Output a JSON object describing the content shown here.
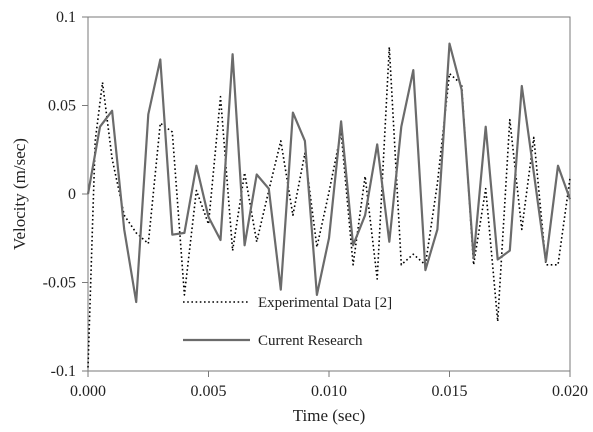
{
  "chart_data": {
    "type": "line",
    "xlabel": "Time (sec)",
    "ylabel": "Velocity (m/sec)",
    "xlim": [
      0,
      0.02
    ],
    "ylim": [
      -0.1,
      0.1
    ],
    "x_ticks": [
      0,
      0.005,
      0.01,
      0.015,
      0.02
    ],
    "x_tick_labels": [
      "0.000",
      "0.005",
      "0.010",
      "0.015",
      "0.020"
    ],
    "y_ticks": [
      -0.1,
      -0.05,
      0,
      0.05,
      0.1
    ],
    "y_tick_labels": [
      "-0.1",
      "-0.05",
      "0",
      "0.05",
      "0.1"
    ],
    "grid": false,
    "legend_position": "bottom-center",
    "series": [
      {
        "name": "Experimental Data [2]",
        "style": "dotted",
        "color": "#000000",
        "x": [
          0,
          0.0003,
          0.0006,
          0.001,
          0.0015,
          0.002,
          0.0025,
          0.003,
          0.0035,
          0.004,
          0.0045,
          0.005,
          0.0055,
          0.006,
          0.0065,
          0.007,
          0.0075,
          0.008,
          0.0085,
          0.009,
          0.0095,
          0.01,
          0.0105,
          0.011,
          0.0115,
          0.012,
          0.0125,
          0.013,
          0.0135,
          0.014,
          0.0145,
          0.015,
          0.0155,
          0.016,
          0.0165,
          0.017,
          0.0175,
          0.018,
          0.0185,
          0.019,
          0.0195,
          0.02
        ],
        "y": [
          -0.098,
          0.03,
          0.063,
          0.02,
          -0.012,
          -0.022,
          -0.028,
          0.04,
          0.035,
          -0.057,
          0.002,
          -0.017,
          0.055,
          -0.032,
          0.012,
          -0.027,
          0.002,
          0.03,
          -0.012,
          0.023,
          -0.03,
          0.001,
          0.035,
          -0.04,
          0.01,
          -0.048,
          0.083,
          -0.04,
          -0.034,
          -0.04,
          0.006,
          0.068,
          0.062,
          -0.04,
          0.003,
          -0.072,
          0.042,
          -0.02,
          0.032,
          -0.04,
          -0.04,
          0.009
        ]
      },
      {
        "name": "Current Research",
        "style": "solid",
        "color": "#6b6b6b",
        "x": [
          0,
          0.0005,
          0.001,
          0.0015,
          0.002,
          0.0025,
          0.003,
          0.0035,
          0.004,
          0.0045,
          0.005,
          0.0055,
          0.006,
          0.0065,
          0.007,
          0.0075,
          0.008,
          0.0085,
          0.009,
          0.0095,
          0.01,
          0.0105,
          0.011,
          0.0115,
          0.012,
          0.0125,
          0.013,
          0.0135,
          0.014,
          0.0145,
          0.015,
          0.0155,
          0.016,
          0.0165,
          0.017,
          0.0175,
          0.018,
          0.0185,
          0.019,
          0.0195,
          0.02
        ],
        "y": [
          0,
          0.038,
          0.047,
          -0.02,
          -0.061,
          0.045,
          0.076,
          -0.023,
          -0.022,
          0.016,
          -0.013,
          -0.026,
          0.079,
          -0.029,
          0.011,
          0.003,
          -0.054,
          0.046,
          0.03,
          -0.057,
          -0.025,
          0.041,
          -0.029,
          -0.012,
          0.028,
          -0.027,
          0.038,
          0.07,
          -0.043,
          -0.02,
          0.085,
          0.059,
          -0.036,
          0.038,
          -0.037,
          -0.032,
          0.061,
          0.012,
          -0.038,
          0.016,
          -0.003
        ]
      }
    ]
  }
}
